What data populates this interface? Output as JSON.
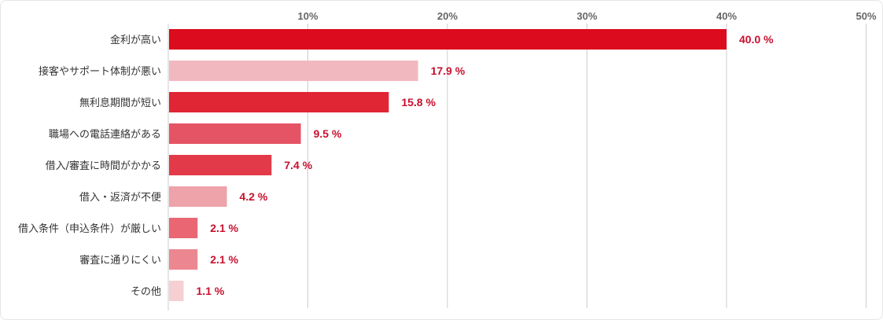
{
  "chart_data": {
    "type": "bar",
    "orientation": "horizontal",
    "categories": [
      "金利が高い",
      "接客やサポート体制が悪い",
      "無利息期間が短い",
      "職場への電話連絡がある",
      "借入/審査に時間がかかる",
      "借入・返済が不便",
      "借入条件（申込条件）が厳しい",
      "審査に通りにくい",
      "その他"
    ],
    "values": [
      40.0,
      17.9,
      15.8,
      9.5,
      7.4,
      4.2,
      2.1,
      2.1,
      1.1
    ],
    "value_labels": [
      "40.0 %",
      "17.9 %",
      "15.8 %",
      "9.5 %",
      "7.4 %",
      "4.2 %",
      "2.1 %",
      "2.1 %",
      "1.1 %"
    ],
    "bar_colors": [
      "#dc0b1d",
      "#f1b9bf",
      "#e02535",
      "#e55464",
      "#e23a48",
      "#eea2aa",
      "#ea6673",
      "#ec8791",
      "#f6cfd3"
    ],
    "xlim": [
      0,
      50
    ],
    "x_ticks": [
      10,
      20,
      30,
      40,
      50
    ],
    "x_tick_labels": [
      "10%",
      "20%",
      "30%",
      "40%",
      "50%"
    ],
    "x_axis_position": "top",
    "grid": true,
    "value_label_color": "#c8102e",
    "title": "",
    "xlabel": "",
    "ylabel": ""
  }
}
